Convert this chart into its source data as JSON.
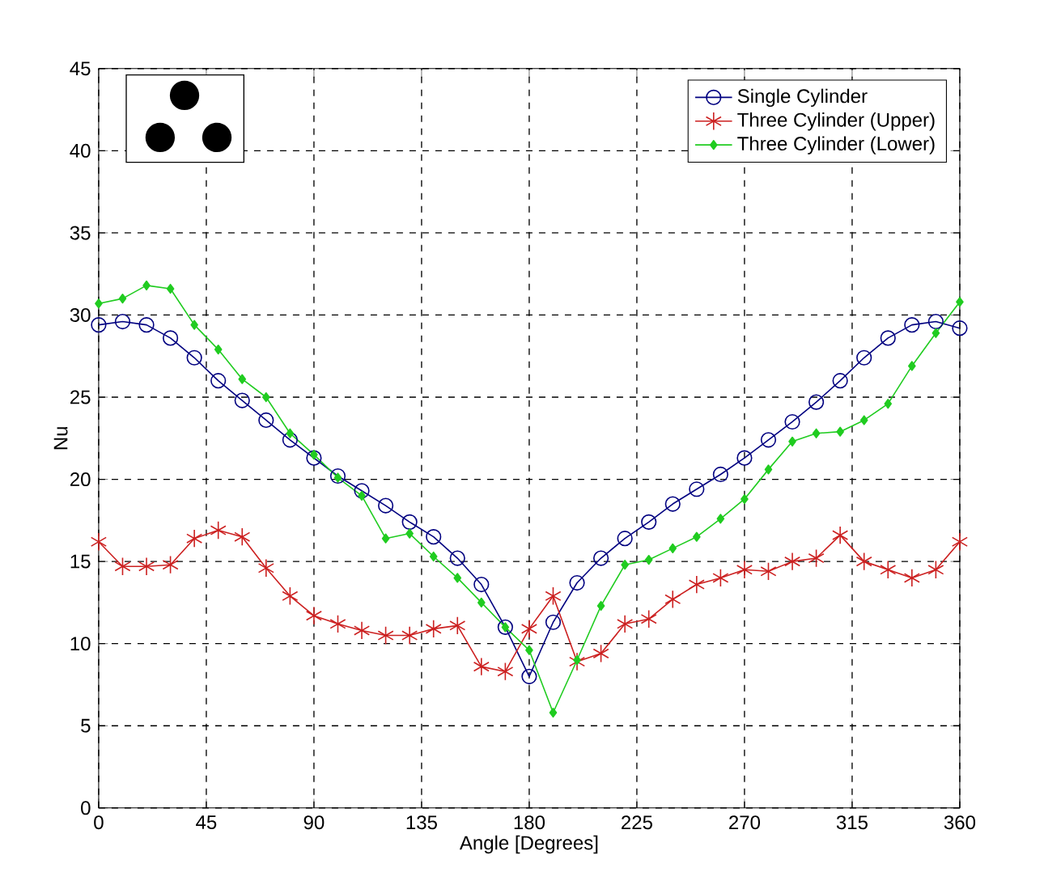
{
  "chart_data": {
    "type": "line",
    "xlabel": "Angle [Degrees]",
    "ylabel": "Nu",
    "x": [
      0,
      10,
      20,
      30,
      40,
      50,
      60,
      70,
      80,
      90,
      100,
      110,
      120,
      130,
      140,
      150,
      160,
      170,
      180,
      190,
      200,
      210,
      220,
      230,
      240,
      250,
      260,
      270,
      280,
      290,
      300,
      310,
      320,
      330,
      340,
      350,
      360
    ],
    "series": [
      {
        "name": "Single Cylinder",
        "color": "#000080",
        "marker": "circle",
        "values": [
          29.4,
          29.6,
          29.4,
          28.6,
          27.4,
          26.0,
          24.8,
          23.6,
          22.4,
          21.3,
          20.2,
          19.3,
          18.4,
          17.4,
          16.5,
          15.2,
          13.6,
          11.0,
          8.0,
          11.3,
          13.7,
          15.2,
          16.4,
          17.4,
          18.5,
          19.4,
          20.3,
          21.3,
          22.4,
          23.5,
          24.7,
          26.0,
          27.4,
          28.6,
          29.4,
          29.6,
          29.2
        ]
      },
      {
        "name": "Three Cylinder (Upper)",
        "color": "#cc2020",
        "marker": "cross",
        "values": [
          16.2,
          14.7,
          14.7,
          14.8,
          16.4,
          16.9,
          16.5,
          14.6,
          12.9,
          11.7,
          11.2,
          10.8,
          10.5,
          10.5,
          10.9,
          11.1,
          8.6,
          8.3,
          10.9,
          12.9,
          8.9,
          9.4,
          11.2,
          11.5,
          12.7,
          13.6,
          14.0,
          14.5,
          14.4,
          15.0,
          15.2,
          16.6,
          15.0,
          14.5,
          14.0,
          14.5,
          16.2
        ]
      },
      {
        "name": "Three Cylinder (Lower)",
        "color": "#20cc20",
        "marker": "diamond",
        "values": [
          30.7,
          31.0,
          31.8,
          31.6,
          29.4,
          27.9,
          26.1,
          25.0,
          22.8,
          21.5,
          20.1,
          19.0,
          16.4,
          16.7,
          15.3,
          14.0,
          12.5,
          11.0,
          9.6,
          5.8,
          9.0,
          12.3,
          14.8,
          15.1,
          15.8,
          16.5,
          17.6,
          18.8,
          20.6,
          22.3,
          22.8,
          22.9,
          23.6,
          24.6,
          26.9,
          28.9,
          30.8
        ]
      }
    ],
    "xlim": [
      0,
      360
    ],
    "xticks": [
      0,
      45,
      90,
      135,
      180,
      225,
      270,
      315,
      360
    ],
    "ylim": [
      0,
      45
    ],
    "yticks": [
      0,
      5,
      10,
      15,
      20,
      25,
      30,
      35,
      40,
      45
    ],
    "grid": true,
    "legend": "top right",
    "line_style": "solid"
  }
}
